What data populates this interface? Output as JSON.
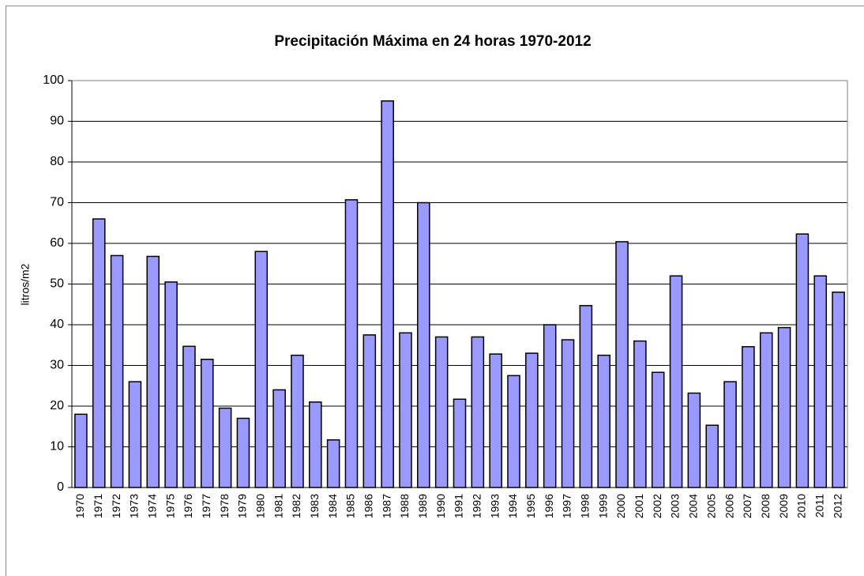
{
  "chart_data": {
    "type": "bar",
    "title": "Precipitación Máxima en 24 horas 1970-2012",
    "y_label": "litros/m2",
    "categories": [
      "1970",
      "1971",
      "1972",
      "1973",
      "1974",
      "1975",
      "1976",
      "1977",
      "1978",
      "1979",
      "1980",
      "1981",
      "1982",
      "1983",
      "1984",
      "1985",
      "1986",
      "1987",
      "1988",
      "1989",
      "1990",
      "1991",
      "1992",
      "1993",
      "1994",
      "1995",
      "1996",
      "1997",
      "1998",
      "1999",
      "2000",
      "2001",
      "2002",
      "2003",
      "2004",
      "2005",
      "2006",
      "2007",
      "2008",
      "2009",
      "2010",
      "2011",
      "2012"
    ],
    "values": [
      18,
      66,
      57,
      26,
      56.8,
      50.5,
      34.7,
      31.5,
      19.5,
      17,
      58,
      24,
      32.5,
      21,
      11.7,
      70.7,
      37.5,
      95,
      38,
      70,
      37,
      21.7,
      37,
      32.8,
      27.5,
      33,
      40,
      36.3,
      44.7,
      32.5,
      60.4,
      36,
      28.3,
      52,
      23.2,
      15.3,
      26,
      34.6,
      38,
      39.3,
      62.3,
      52,
      48
    ],
    "color": "#9999ff",
    "ylim": [
      0,
      100
    ],
    "yticks": [
      0,
      10,
      20,
      30,
      40,
      50,
      60,
      70,
      80,
      90,
      100
    ],
    "grid": true
  }
}
